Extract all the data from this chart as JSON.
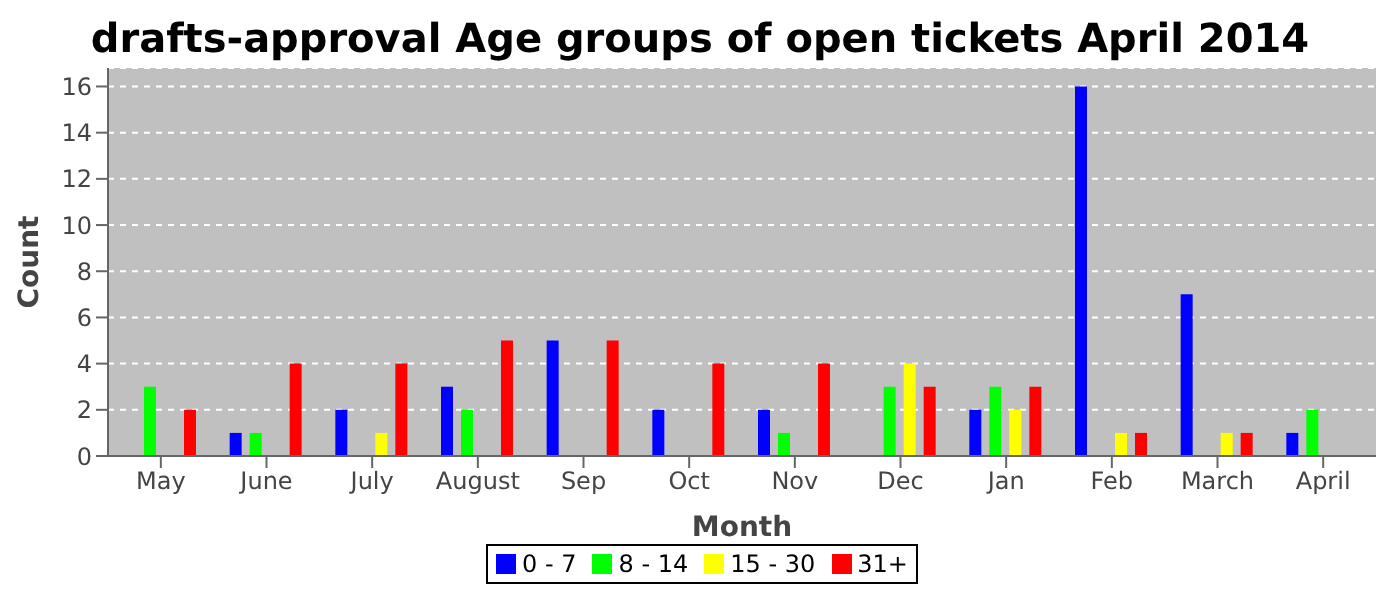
{
  "chart_data": {
    "type": "bar",
    "title": "drafts-approval Age groups of open tickets April 2014",
    "xlabel": "Month",
    "ylabel": "Count",
    "categories": [
      "May",
      "June",
      "July",
      "August",
      "Sep",
      "Oct",
      "Nov",
      "Dec",
      "Jan",
      "Feb",
      "March",
      "April"
    ],
    "series": [
      {
        "name": "0 - 7",
        "color": "#0000ff",
        "values": [
          0,
          1,
          2,
          3,
          5,
          2,
          2,
          0,
          2,
          16,
          7,
          1
        ]
      },
      {
        "name": "8 - 14",
        "color": "#00ff00",
        "values": [
          3,
          1,
          0,
          2,
          0,
          0,
          1,
          3,
          3,
          0,
          0,
          2
        ]
      },
      {
        "name": "15 - 30",
        "color": "#ffff00",
        "values": [
          0,
          0,
          1,
          0,
          0,
          0,
          0,
          4,
          2,
          1,
          1,
          0
        ]
      },
      {
        "name": "31+",
        "color": "#ff0000",
        "values": [
          2,
          4,
          4,
          5,
          5,
          4,
          4,
          3,
          3,
          1,
          1,
          0
        ]
      }
    ],
    "ylim": [
      0,
      16.8
    ],
    "yticks": [
      0,
      2,
      4,
      6,
      8,
      10,
      12,
      14,
      16
    ],
    "grid": "y",
    "legend": "bottom"
  }
}
